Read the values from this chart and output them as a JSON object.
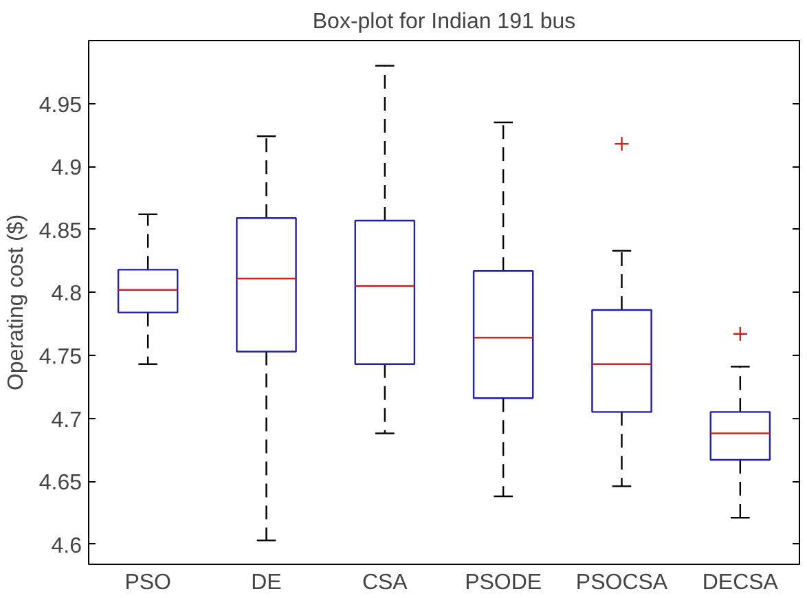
{
  "chart_data": {
    "type": "box",
    "title": "Box-plot for Indian 191 bus",
    "ylabel": "Operating cost ($)",
    "categories": [
      "PSO",
      "DE",
      "CSA",
      "PSODE",
      "PSOCSA",
      "DECSA"
    ],
    "boxes": [
      {
        "low": 4.743,
        "q1": 4.784,
        "median": 4.802,
        "q3": 4.818,
        "high": 4.862
      },
      {
        "low": 4.603,
        "q1": 4.753,
        "median": 4.811,
        "q3": 4.859,
        "high": 4.924
      },
      {
        "low": 4.688,
        "q1": 4.743,
        "median": 4.805,
        "q3": 4.857,
        "high": 4.98
      },
      {
        "low": 4.638,
        "q1": 4.716,
        "median": 4.764,
        "q3": 4.817,
        "high": 4.935
      },
      {
        "low": 4.646,
        "q1": 4.705,
        "median": 4.743,
        "q3": 4.786,
        "high": 4.833,
        "outliers": [
          4.918
        ]
      },
      {
        "low": 4.621,
        "q1": 4.667,
        "median": 4.688,
        "q3": 4.705,
        "high": 4.741,
        "outliers": [
          4.767
        ]
      }
    ],
    "color": "#1f1fa8",
    "line_style": "dashed",
    "marker": "cross",
    "ylim": [
      4.584,
      5.0
    ],
    "yticks": [
      4.6,
      4.65,
      4.7,
      4.75,
      4.8,
      4.85,
      4.9,
      4.95
    ],
    "grid": false
  }
}
